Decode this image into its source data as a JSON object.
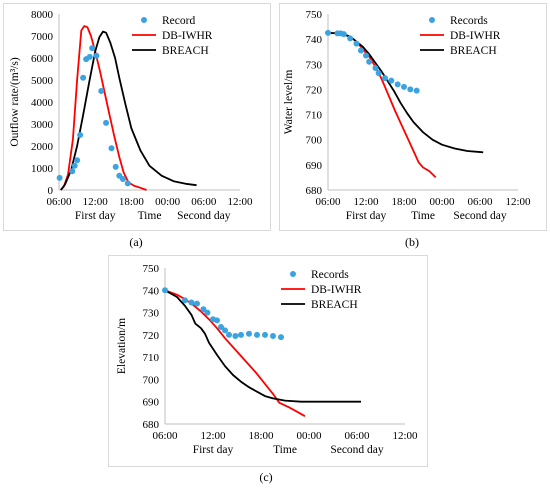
{
  "captions": [
    "(a)",
    "(b)",
    "(c)"
  ],
  "chart_data": [
    {
      "type": "line",
      "ylabel": "Outflow rate/(m³/s)",
      "xlabel": "Time",
      "day_labels": [
        "First day",
        "Second day"
      ],
      "x_ticks": [
        "06:00",
        "12:00",
        "18:00",
        "00:00",
        "06:00",
        "12:00"
      ],
      "x_tick_hours": [
        6,
        12,
        18,
        24,
        30,
        36
      ],
      "xlim": [
        6,
        36
      ],
      "ylim": [
        0,
        8000
      ],
      "y_ticks": [
        0,
        1000,
        2000,
        3000,
        4000,
        5000,
        6000,
        7000,
        8000
      ],
      "series": [
        {
          "name": "Record",
          "kind": "scatter",
          "color": "#3aa3e0",
          "x": [
            6.1,
            8.2,
            8.6,
            9.0,
            9.5,
            10.0,
            10.5,
            11.1,
            11.5,
            12.2,
            13.0,
            13.8,
            14.7,
            15.4,
            16.0,
            16.6,
            17.4
          ],
          "y": [
            550,
            850,
            1100,
            1350,
            2500,
            5100,
            5950,
            6050,
            6450,
            6100,
            4500,
            3050,
            1900,
            1050,
            650,
            500,
            300
          ]
        },
        {
          "name": "DB-IWHR",
          "kind": "line",
          "color": "#ff0000",
          "x": [
            6.3,
            6.8,
            7.5,
            8.3,
            9.0,
            9.7,
            10.2,
            10.7,
            11.3,
            12.0,
            12.8,
            13.5,
            14.3,
            15.2,
            16.0,
            16.7,
            17.5,
            18.4,
            19.5,
            20.5
          ],
          "y": [
            0,
            150,
            700,
            2300,
            5000,
            7250,
            7450,
            7400,
            7000,
            6300,
            5400,
            4500,
            3500,
            2400,
            1500,
            800,
            350,
            200,
            100,
            0
          ]
        },
        {
          "name": "BREACH",
          "kind": "line",
          "color": "#000000",
          "x": [
            6.3,
            7.0,
            8.0,
            9.0,
            10.0,
            11.0,
            12.0,
            12.7,
            13.3,
            13.8,
            14.5,
            15.3,
            16.0,
            17.0,
            18.0,
            19.5,
            21.0,
            23.0,
            25.0,
            27.0,
            28.8
          ],
          "y": [
            0,
            250,
            900,
            2000,
            3400,
            4900,
            6300,
            6950,
            7200,
            7150,
            6700,
            6000,
            5100,
            3900,
            2800,
            1800,
            1100,
            650,
            400,
            280,
            220
          ]
        }
      ],
      "legend_position": "top-right"
    },
    {
      "type": "line",
      "ylabel": "Water level/m",
      "xlabel": "Time",
      "day_labels": [
        "First day",
        "Second day"
      ],
      "x_ticks": [
        "06:00",
        "12:00",
        "18:00",
        "00:00",
        "06:00",
        "12:00"
      ],
      "x_tick_hours": [
        6,
        12,
        18,
        24,
        30,
        36
      ],
      "xlim": [
        6,
        36
      ],
      "ylim": [
        680,
        750
      ],
      "y_ticks": [
        680,
        690,
        700,
        710,
        720,
        730,
        740,
        750
      ],
      "series": [
        {
          "name": "Records",
          "kind": "scatter",
          "color": "#3aa3e0",
          "x": [
            6.0,
            7.5,
            8.0,
            8.5,
            9.5,
            10.5,
            11.2,
            12.0,
            12.5,
            13.5,
            14.0,
            15.0,
            16.0,
            17.0,
            18.0,
            19.0,
            20.0
          ],
          "y": [
            742.5,
            742.3,
            742.3,
            742.0,
            740.3,
            738.2,
            735.5,
            733.5,
            731.0,
            728.5,
            726.5,
            724.5,
            723.5,
            722.0,
            721.0,
            720.0,
            719.5
          ]
        },
        {
          "name": "DB-IWHR",
          "kind": "line",
          "color": "#ff0000",
          "x": [
            6.0,
            8.0,
            9.5,
            10.5,
            11.5,
            12.5,
            13.5,
            14.5,
            15.5,
            16.5,
            17.5,
            18.5,
            19.5,
            20.3,
            21.0,
            22.0,
            23.0
          ],
          "y": [
            742.5,
            742.2,
            741.0,
            739.0,
            736.0,
            733.0,
            729.0,
            724.0,
            718.0,
            712.0,
            706.5,
            701.0,
            695.5,
            691.0,
            689.0,
            687.5,
            685.0
          ]
        },
        {
          "name": "BREACH",
          "kind": "line",
          "color": "#000000",
          "x": [
            6.0,
            8.0,
            9.5,
            10.5,
            11.5,
            12.5,
            13.5,
            14.5,
            15.5,
            16.5,
            17.5,
            18.5,
            19.5,
            21.0,
            22.5,
            24.0,
            26.0,
            28.0,
            30.5
          ],
          "y": [
            742.5,
            742.3,
            741.0,
            739.0,
            737.0,
            734.0,
            730.5,
            727.0,
            723.0,
            719.0,
            714.5,
            710.5,
            707.0,
            703.0,
            700.0,
            698.0,
            696.5,
            695.5,
            695.0
          ]
        }
      ],
      "legend_position": "top-right"
    },
    {
      "type": "line",
      "ylabel": "Elevation/m",
      "xlabel": "Time",
      "day_labels": [
        "First day",
        "Second day"
      ],
      "x_ticks": [
        "06:00",
        "12:00",
        "18:00",
        "00:00",
        "06:00",
        "12:00"
      ],
      "x_tick_hours": [
        6,
        12,
        18,
        24,
        30,
        36
      ],
      "xlim": [
        6,
        36
      ],
      "ylim": [
        680,
        750
      ],
      "y_ticks": [
        680,
        690,
        700,
        710,
        720,
        730,
        740,
        750
      ],
      "series": [
        {
          "name": "Records",
          "kind": "scatter",
          "color": "#3aa3e0",
          "x": [
            6.0,
            8.5,
            9.3,
            10.0,
            10.8,
            11.3,
            12.0,
            12.5,
            13.0,
            13.5,
            14.0,
            14.8,
            15.5,
            16.5,
            17.5,
            18.5,
            19.5,
            20.5
          ],
          "y": [
            740.0,
            735.5,
            734.5,
            734.0,
            731.5,
            730.0,
            727.0,
            726.5,
            723.5,
            722.0,
            720.0,
            719.5,
            720.0,
            720.5,
            720.0,
            720.0,
            719.5,
            719.0
          ]
        },
        {
          "name": "DB-IWHR",
          "kind": "line",
          "color": "#ff0000",
          "x": [
            6.0,
            7.5,
            8.5,
            9.5,
            10.5,
            11.5,
            12.5,
            13.5,
            14.5,
            15.5,
            16.5,
            17.5,
            18.5,
            19.5,
            20.3,
            21.5,
            22.5,
            23.5
          ],
          "y": [
            740.0,
            738.0,
            736.0,
            733.5,
            730.5,
            727.0,
            723.0,
            718.5,
            714.5,
            710.5,
            706.5,
            702.5,
            698.0,
            693.5,
            689.5,
            687.5,
            685.5,
            683.5
          ]
        },
        {
          "name": "BREACH",
          "kind": "line",
          "color": "#000000",
          "x": [
            6.0,
            7.5,
            8.5,
            9.3,
            9.8,
            10.5,
            11.0,
            11.5,
            12.5,
            13.5,
            14.5,
            15.5,
            16.5,
            17.5,
            18.5,
            19.5,
            21.0,
            23.0,
            25.0,
            27.0,
            30.5
          ],
          "y": [
            740.0,
            737.0,
            733.0,
            729.0,
            725.0,
            723.0,
            720.5,
            716.5,
            711.0,
            706.0,
            702.0,
            699.0,
            696.5,
            694.5,
            692.5,
            691.5,
            690.5,
            690.0,
            690.0,
            690.0,
            690.0
          ]
        }
      ],
      "legend_position": "top-right"
    }
  ]
}
